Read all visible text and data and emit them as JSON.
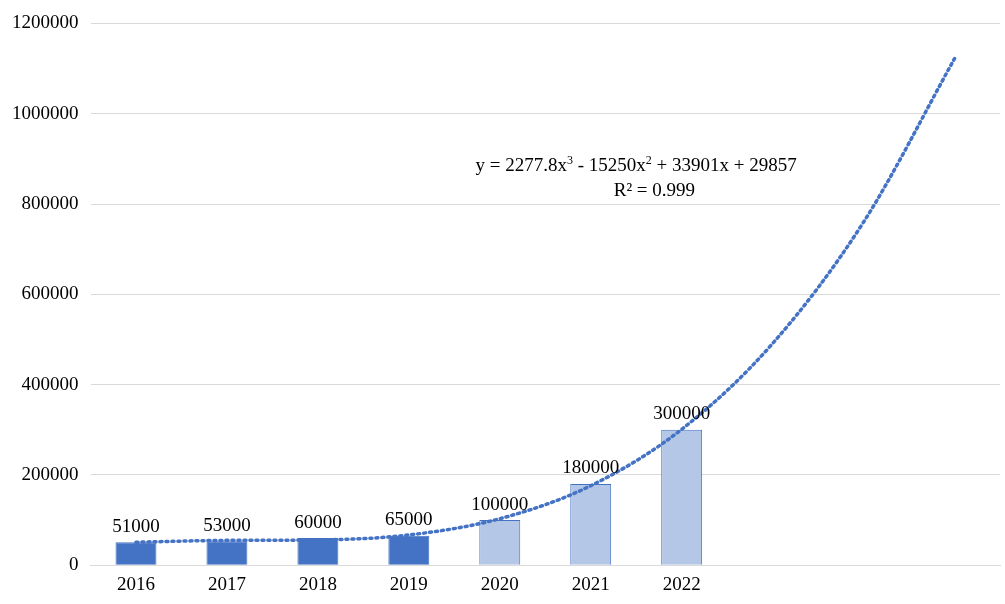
{
  "chart_data": {
    "type": "bar",
    "categories": [
      "2016",
      "2017",
      "2018",
      "2019",
      "2020",
      "2021",
      "2022",
      null,
      null,
      null
    ],
    "series": [
      {
        "color": "#4472c4",
        "colors": [
          "#4472c4",
          "#4472c4",
          "#4472c4",
          "#4472c4",
          "#b4c7e7",
          "#b4c7e7",
          "#b4c7e7",
          null,
          null,
          null
        ],
        "values": [
          51000,
          53000,
          60000,
          65000,
          100000,
          180000,
          300000,
          null,
          null,
          null
        ],
        "value_labels": [
          "51000",
          "53000",
          "60000",
          "65000",
          "100000",
          "180000",
          "300000",
          null,
          null,
          null
        ]
      },
      {
        "type": "line",
        "color": "#4472c4",
        "line_style": "dotted",
        "marker": "none",
        "values": [
          51000,
          55000,
          56000,
          67000,
          103000,
          176000,
          301000,
          491000,
          760000,
          1122000
        ]
      }
    ],
    "ylim": [
      0,
      1200000
    ],
    "yticks": [
      0,
      200000,
      400000,
      600000,
      800000,
      1000000,
      1200000
    ],
    "grid": "y",
    "legend": false,
    "annotations": [
      "y = 2277.8x$^{3}$ - 15250x$^{2}$ + 33901x + 29857",
      "R² = 0.999"
    ]
  }
}
